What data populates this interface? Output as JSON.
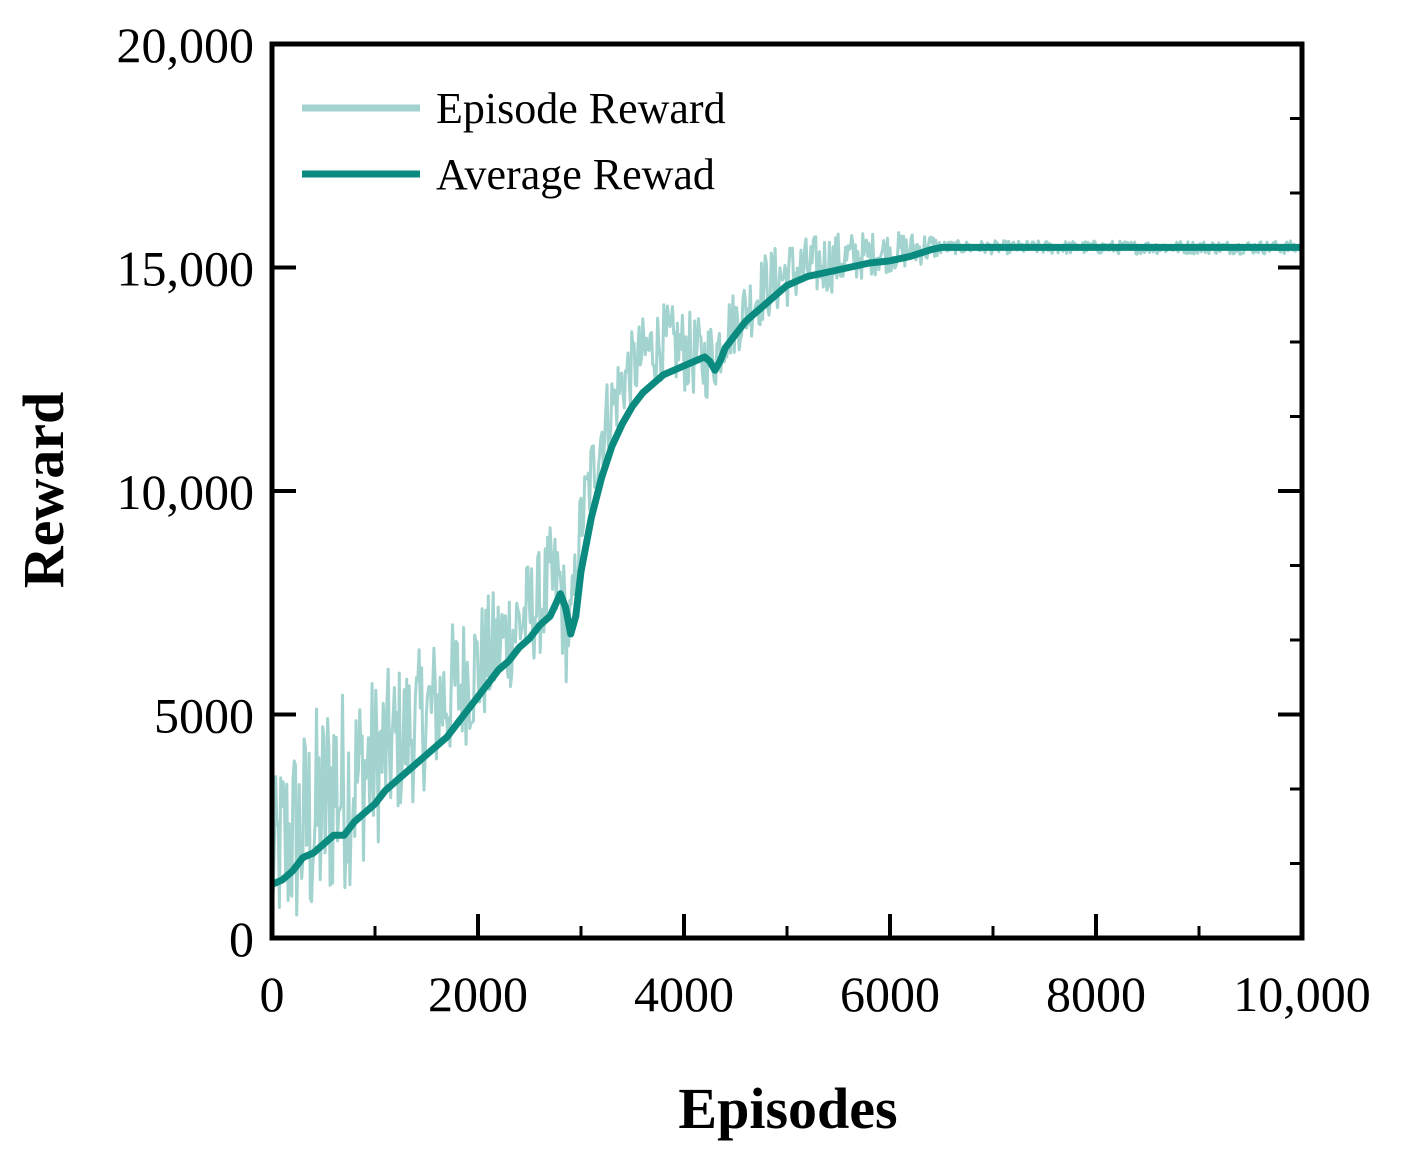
{
  "colors": {
    "episode_reward": "#a3d3ce",
    "average_reward": "#0b8b80",
    "axes": "#000000"
  },
  "chart_data": {
    "type": "line",
    "xlabel": "Episodes",
    "ylabel": "Reward",
    "xlim": [
      0,
      10000
    ],
    "ylim": [
      0,
      20000
    ],
    "xticks": [
      0,
      2000,
      4000,
      6000,
      8000,
      10000
    ],
    "xtick_labels": [
      "0",
      "2000",
      "4000",
      "6000",
      "8000",
      "10,000"
    ],
    "yticks": [
      0,
      5000,
      10000,
      15000,
      20000
    ],
    "ytick_labels": [
      "0",
      "5000",
      "10,000",
      "15,000",
      "20,000"
    ],
    "grid": false,
    "legend_position": "top-left",
    "legend": [
      "Episode Reward",
      "Average Rewad"
    ],
    "series": [
      {
        "name": "Episode Reward",
        "color": "#a3d3ce",
        "style": "thin noisy line",
        "noise_band_description": "noisy band around the average curve",
        "x": [
          0,
          100,
          200,
          300,
          400,
          500,
          600,
          700,
          800,
          900,
          1000,
          1200,
          1400,
          1600,
          1800,
          2000,
          2200,
          2400,
          2600,
          2700,
          2800,
          2850,
          2900,
          3000,
          3200,
          3400,
          3600,
          3800,
          4000,
          4200,
          4300,
          4400,
          4600,
          4800,
          5000,
          5200,
          5400,
          5600,
          5800,
          6000,
          6200,
          6400,
          6500,
          7000,
          8000,
          9000,
          10000
        ],
        "lower": [
          0,
          0,
          0,
          0,
          0,
          200,
          800,
          1000,
          1300,
          1700,
          2000,
          2600,
          3100,
          3600,
          4100,
          4600,
          5200,
          5800,
          6300,
          6600,
          6500,
          5600,
          6200,
          8400,
          10300,
          11600,
          12200,
          12500,
          12200,
          12000,
          12200,
          12800,
          13300,
          13800,
          14100,
          14300,
          14400,
          14600,
          14800,
          14900,
          15000,
          15100,
          15300,
          15300,
          15300,
          15300,
          15300
        ],
        "upper": [
          3300,
          4200,
          4500,
          4800,
          5200,
          5400,
          6200,
          5600,
          5700,
          5800,
          5900,
          6100,
          6400,
          6800,
          7200,
          7500,
          7900,
          8300,
          8700,
          9200,
          9200,
          8200,
          7800,
          10200,
          12300,
          13300,
          13900,
          14200,
          14100,
          13800,
          13900,
          14300,
          14800,
          15400,
          15600,
          15700,
          15800,
          15800,
          15800,
          15800,
          15800,
          15800,
          15600,
          15600,
          15600,
          15600,
          15600
        ]
      },
      {
        "name": "Average Rewad",
        "color": "#0b8b80",
        "style": "thick line",
        "x": [
          0,
          100,
          200,
          300,
          400,
          500,
          600,
          700,
          800,
          900,
          1000,
          1100,
          1200,
          1300,
          1400,
          1500,
          1600,
          1700,
          1800,
          1900,
          2000,
          2100,
          2200,
          2300,
          2400,
          2500,
          2600,
          2700,
          2800,
          2850,
          2900,
          2950,
          3000,
          3100,
          3200,
          3300,
          3400,
          3500,
          3600,
          3700,
          3800,
          3900,
          4000,
          4100,
          4200,
          4250,
          4300,
          4350,
          4400,
          4500,
          4600,
          4700,
          4800,
          4900,
          5000,
          5200,
          5400,
          5600,
          5800,
          6000,
          6200,
          6400,
          6500,
          7000,
          8000,
          9000,
          10000
        ],
        "y": [
          1200,
          1300,
          1500,
          1800,
          1900,
          2100,
          2300,
          2300,
          2600,
          2800,
          3000,
          3300,
          3500,
          3700,
          3900,
          4100,
          4300,
          4500,
          4800,
          5100,
          5400,
          5700,
          6000,
          6200,
          6500,
          6700,
          7000,
          7200,
          7700,
          7400,
          6800,
          7200,
          8200,
          9400,
          10300,
          11000,
          11500,
          11900,
          12200,
          12400,
          12600,
          12700,
          12800,
          12900,
          13000,
          12900,
          12700,
          12900,
          13200,
          13500,
          13800,
          14000,
          14200,
          14400,
          14600,
          14800,
          14900,
          15000,
          15100,
          15150,
          15250,
          15400,
          15450,
          15450,
          15450,
          15450,
          15450
        ]
      }
    ]
  }
}
